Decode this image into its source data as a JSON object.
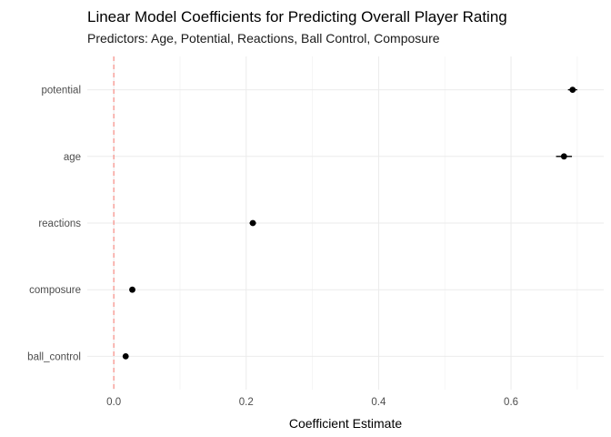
{
  "chart_data": {
    "type": "scatter",
    "title": "Linear Model Coefficients for Predicting Overall Player Rating",
    "subtitle": "Predictors: Age, Potential, Reactions, Ball Control, Composure",
    "xlabel": "Coefficient Estimate",
    "ylabel": "",
    "xlim": [
      -0.04,
      0.74
    ],
    "x_ticks": [
      0.0,
      0.2,
      0.4,
      0.6
    ],
    "x_tick_labels": [
      "0.0",
      "0.2",
      "0.4",
      "0.6"
    ],
    "reference_line": {
      "x": 0,
      "style": "dashed",
      "color": "#f8766d"
    },
    "grid": true,
    "categories": [
      "ball_control",
      "composure",
      "reactions",
      "age",
      "potential"
    ],
    "points": [
      {
        "term": "ball_control",
        "estimate": 0.018,
        "low": 0.014,
        "high": 0.022
      },
      {
        "term": "composure",
        "estimate": 0.028,
        "low": 0.024,
        "high": 0.032
      },
      {
        "term": "reactions",
        "estimate": 0.21,
        "low": 0.205,
        "high": 0.215
      },
      {
        "term": "age",
        "estimate": 0.68,
        "low": 0.668,
        "high": 0.692
      },
      {
        "term": "potential",
        "estimate": 0.693,
        "low": 0.686,
        "high": 0.7
      }
    ],
    "colors": {
      "point": "#000000",
      "reference": "#f8766d",
      "grid": "#ebebeb"
    }
  }
}
